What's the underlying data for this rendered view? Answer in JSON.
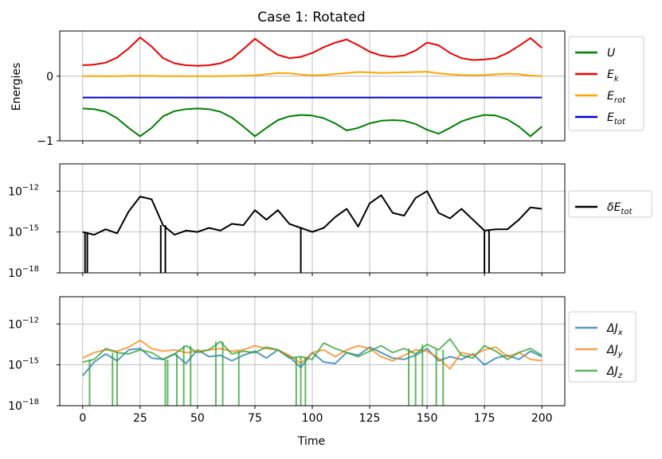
{
  "chart_data": [
    {
      "type": "line",
      "title": "Case 1: Rotated",
      "xlabel": "",
      "ylabel": "Energies",
      "xlim": [
        -10,
        210
      ],
      "ylim": [
        -1,
        0.7
      ],
      "x": [
        0,
        5,
        10,
        15,
        20,
        25,
        30,
        35,
        40,
        45,
        50,
        55,
        60,
        65,
        70,
        75,
        80,
        85,
        90,
        95,
        100,
        105,
        110,
        115,
        120,
        125,
        130,
        135,
        140,
        145,
        150,
        155,
        160,
        165,
        170,
        175,
        180,
        185,
        190,
        195,
        200
      ],
      "yticks": [
        {
          "v": 0,
          "label": "0"
        },
        {
          "v": -1,
          "label": "−1"
        }
      ],
      "series": [
        {
          "name": "U",
          "label": "U",
          "color": "#008000",
          "values": [
            -0.5,
            -0.51,
            -0.55,
            -0.65,
            -0.8,
            -0.93,
            -0.8,
            -0.62,
            -0.54,
            -0.51,
            -0.5,
            -0.51,
            -0.55,
            -0.64,
            -0.78,
            -0.93,
            -0.8,
            -0.68,
            -0.62,
            -0.6,
            -0.61,
            -0.65,
            -0.73,
            -0.84,
            -0.8,
            -0.73,
            -0.69,
            -0.68,
            -0.69,
            -0.74,
            -0.83,
            -0.89,
            -0.8,
            -0.7,
            -0.64,
            -0.6,
            -0.61,
            -0.67,
            -0.78,
            -0.93,
            -0.78
          ]
        },
        {
          "name": "E_k",
          "label": "E",
          "sub": "k",
          "color": "#ee0000",
          "values": [
            0.17,
            0.18,
            0.21,
            0.29,
            0.43,
            0.6,
            0.46,
            0.28,
            0.2,
            0.17,
            0.16,
            0.17,
            0.2,
            0.27,
            0.42,
            0.58,
            0.45,
            0.33,
            0.28,
            0.3,
            0.36,
            0.45,
            0.52,
            0.57,
            0.48,
            0.38,
            0.32,
            0.3,
            0.32,
            0.4,
            0.52,
            0.48,
            0.36,
            0.28,
            0.25,
            0.26,
            0.28,
            0.36,
            0.47,
            0.59,
            0.44
          ]
        },
        {
          "name": "E_rot",
          "label": "E",
          "sub": "rot",
          "color": "#ffa500",
          "values": [
            0,
            0,
            0,
            0,
            0.005,
            0.008,
            0.005,
            0,
            0,
            0,
            0,
            0,
            0,
            0.005,
            0.008,
            0.012,
            0.03,
            0.05,
            0.045,
            0.025,
            0.015,
            0.02,
            0.035,
            0.05,
            0.065,
            0.06,
            0.05,
            0.055,
            0.06,
            0.065,
            0.07,
            0.045,
            0.03,
            0.02,
            0.015,
            0.02,
            0.03,
            0.04,
            0.03,
            0.01,
            0
          ]
        },
        {
          "name": "E_tot",
          "label": "E",
          "sub": "tot",
          "color": "#0000dd",
          "values": [
            -0.33,
            -0.33,
            -0.33,
            -0.33,
            -0.33,
            -0.33,
            -0.33,
            -0.33,
            -0.33,
            -0.33,
            -0.33,
            -0.33,
            -0.33,
            -0.33,
            -0.33,
            -0.33,
            -0.33,
            -0.33,
            -0.33,
            -0.33,
            -0.33,
            -0.33,
            -0.33,
            -0.33,
            -0.33,
            -0.33,
            -0.33,
            -0.33,
            -0.33,
            -0.33,
            -0.33,
            -0.33,
            -0.33,
            -0.33,
            -0.33,
            -0.33,
            -0.33,
            -0.33,
            -0.33,
            -0.33,
            -0.33
          ]
        }
      ]
    },
    {
      "type": "line",
      "yscale": "log",
      "xlim": [
        -10,
        210
      ],
      "ylim_exp": [
        -18,
        -10
      ],
      "yticks": [
        {
          "exp": -12,
          "label": "10",
          "sup": "−12"
        },
        {
          "exp": -15,
          "label": "10",
          "sup": "−15"
        },
        {
          "exp": -18,
          "label": "10",
          "sup": "−18"
        }
      ],
      "x": [
        0,
        5,
        10,
        15,
        20,
        25,
        30,
        35,
        40,
        45,
        50,
        55,
        60,
        65,
        70,
        75,
        80,
        85,
        90,
        95,
        100,
        105,
        110,
        115,
        120,
        125,
        130,
        135,
        140,
        145,
        150,
        155,
        160,
        165,
        170,
        175,
        180,
        185,
        190,
        195,
        200
      ],
      "series": [
        {
          "name": "dE_tot",
          "label": "δE",
          "sub": "tot",
          "color": "#000000",
          "values_exp": [
            -15,
            -15.2,
            -14.8,
            -15.1,
            -13.5,
            -12.4,
            -12.6,
            -14.5,
            -15.2,
            -14.9,
            -15.0,
            -14.7,
            -14.9,
            -14.4,
            -14.5,
            -13.4,
            -14.1,
            -13.4,
            -14.4,
            -14.7,
            -15.0,
            -14.7,
            -13.9,
            -13.3,
            -14.6,
            -12.9,
            -12.3,
            -13.6,
            -13.8,
            -12.5,
            -12.0,
            -13.6,
            -14.0,
            -13.3,
            -14.1,
            -14.9,
            -14.8,
            -14.8,
            -14.1,
            -13.2,
            -13.3
          ],
          "drops": [
            1,
            2,
            34,
            36,
            95,
            175,
            177
          ]
        }
      ]
    },
    {
      "type": "line",
      "yscale": "log",
      "xlabel": "Time",
      "xlim": [
        -10,
        210
      ],
      "ylim_exp": [
        -18,
        -10
      ],
      "xticks": [
        0,
        25,
        50,
        75,
        100,
        125,
        150,
        175,
        200
      ],
      "yticks": [
        {
          "exp": -12,
          "label": "10",
          "sup": "−12"
        },
        {
          "exp": -15,
          "label": "10",
          "sup": "−15"
        },
        {
          "exp": -18,
          "label": "10",
          "sup": "−18"
        }
      ],
      "x": [
        0,
        5,
        10,
        15,
        20,
        25,
        30,
        35,
        40,
        45,
        50,
        55,
        60,
        65,
        70,
        75,
        80,
        85,
        90,
        95,
        100,
        105,
        110,
        115,
        120,
        125,
        130,
        135,
        140,
        145,
        150,
        155,
        160,
        165,
        170,
        175,
        180,
        185,
        190,
        195,
        200
      ],
      "series": [
        {
          "name": "dJx",
          "label": "ΔJ",
          "sub": "x",
          "color": "#1f77b4",
          "values_exp": [
            -15.8,
            -14.8,
            -14.2,
            -14.7,
            -13.9,
            -13.8,
            -14.5,
            -14.6,
            -14.2,
            -14.9,
            -13.9,
            -14.4,
            -14.3,
            -14.7,
            -14.3,
            -14.0,
            -14.5,
            -13.9,
            -14.4,
            -15.2,
            -14.1,
            -14.8,
            -14.9,
            -14.1,
            -14.3,
            -13.7,
            -14.1,
            -14.5,
            -14.6,
            -14.3,
            -13.8,
            -14.7,
            -14.4,
            -14.6,
            -14.2,
            -15.0,
            -14.5,
            -14.3,
            -14.6,
            -14.0,
            -14.4
          ]
        },
        {
          "name": "dJy",
          "label": "ΔJ",
          "sub": "y",
          "color": "#ff7f0e",
          "values_exp": [
            -14.5,
            -14.1,
            -13.9,
            -14.0,
            -13.7,
            -13.2,
            -13.8,
            -14.0,
            -13.9,
            -14.1,
            -14.0,
            -13.9,
            -13.8,
            -14.0,
            -13.9,
            -13.6,
            -13.8,
            -13.9,
            -14.3,
            -14.9,
            -14.1,
            -13.9,
            -14.4,
            -13.9,
            -13.6,
            -13.8,
            -14.4,
            -14.7,
            -14.3,
            -13.9,
            -14.0,
            -14.5,
            -15.3,
            -14.1,
            -14.3,
            -13.9,
            -13.7,
            -14.4,
            -14.1,
            -14.6,
            -14.7
          ]
        },
        {
          "name": "dJz",
          "label": "ΔJ",
          "sub": "z",
          "color": "#2ca02c",
          "values_exp": [
            -14.8,
            -14.6,
            -13.8,
            -14.1,
            -14.2,
            -13.9,
            -14.1,
            -14.6,
            -14.2,
            -13.6,
            -14.1,
            -13.9,
            -13.3,
            -14.2,
            -14.0,
            -14.1,
            -13.7,
            -13.9,
            -14.5,
            -14.4,
            -14.6,
            -13.4,
            -13.8,
            -14.1,
            -14.4,
            -14.0,
            -13.6,
            -14.1,
            -13.8,
            -14.2,
            -13.5,
            -13.9,
            -13.1,
            -14.3,
            -14.5,
            -13.6,
            -14.0,
            -14.6,
            -14.1,
            -13.8,
            -14.3
          ],
          "drops": [
            3,
            13,
            15,
            36,
            37,
            41,
            44,
            47,
            58,
            61,
            68,
            93,
            95,
            97,
            142,
            145,
            148,
            154,
            157
          ]
        }
      ]
    }
  ]
}
